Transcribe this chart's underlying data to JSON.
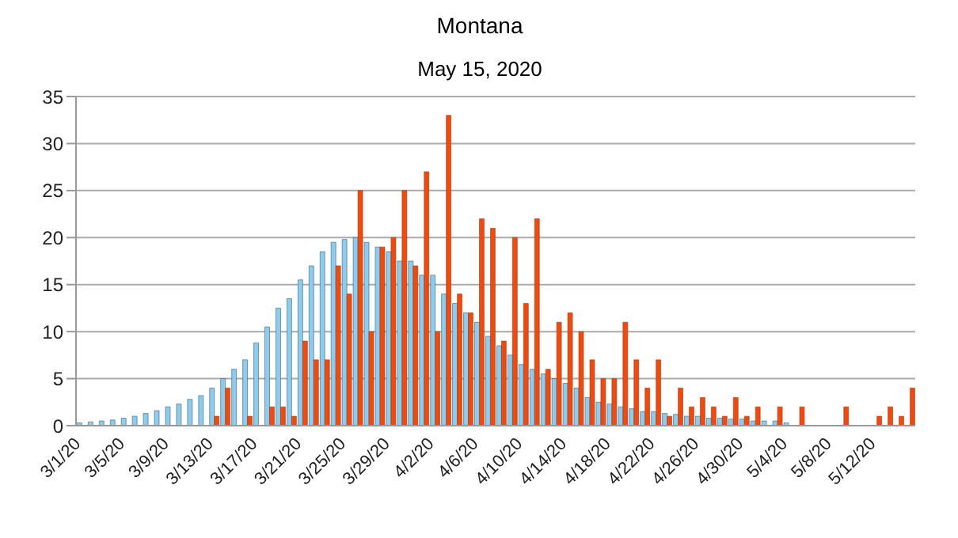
{
  "chart_data": {
    "type": "bar",
    "title": "Montana",
    "subtitle": "May 15, 2020",
    "categories": [
      "3/1/20",
      null,
      null,
      null,
      "3/5/20",
      null,
      null,
      null,
      "3/9/20",
      null,
      null,
      null,
      "3/13/20",
      null,
      null,
      null,
      "3/17/20",
      null,
      null,
      null,
      "3/21/20",
      null,
      null,
      null,
      "3/25/20",
      null,
      null,
      null,
      "3/29/20",
      null,
      null,
      null,
      "4/2/20",
      null,
      null,
      null,
      "4/6/20",
      null,
      null,
      null,
      "4/10/20",
      null,
      null,
      null,
      "4/14/20",
      null,
      null,
      null,
      "4/18/20",
      null,
      null,
      null,
      "4/22/20",
      null,
      null,
      null,
      "4/26/20",
      null,
      null,
      null,
      "4/30/20",
      null,
      null,
      null,
      "5/4/20",
      null,
      null,
      null,
      "5/8/20",
      null,
      null,
      null,
      "5/12/20",
      null,
      null,
      null
    ],
    "series": [
      {
        "color": "#87cef5",
        "values": [
          0.3,
          0.4,
          0.5,
          0.6,
          0.8,
          1,
          1.3,
          1.6,
          2,
          2.3,
          2.8,
          3.2,
          4,
          5,
          6,
          7,
          8.8,
          10.5,
          12.5,
          13.5,
          15.5,
          17,
          18.5,
          19.5,
          19.8,
          20,
          19.5,
          19,
          18.5,
          17.5,
          17.5,
          16,
          16,
          14,
          13,
          12,
          11,
          9.5,
          8.5,
          7.5,
          6.5,
          6,
          5.5,
          5,
          4.5,
          4,
          3,
          2.5,
          2.3,
          2,
          1.8,
          1.5,
          1.5,
          1.3,
          1.2,
          1,
          1,
          0.8,
          0.8,
          0.7,
          0.7,
          0.5,
          0.5,
          0.5,
          0.3,
          0,
          0,
          0,
          0,
          0,
          0,
          0,
          0,
          0,
          0,
          0
        ]
      },
      {
        "color": "#ff4500",
        "values": [
          0,
          0,
          0,
          0,
          0,
          0,
          0,
          0,
          0,
          0,
          0,
          0,
          1,
          4,
          0,
          1,
          0,
          2,
          2,
          1,
          9,
          7,
          7,
          17,
          14,
          25,
          10,
          19,
          20,
          25,
          17,
          27,
          10,
          33,
          14,
          12,
          22,
          21,
          9,
          20,
          13,
          22,
          6,
          11,
          12,
          10,
          7,
          5,
          5,
          11,
          7,
          4,
          7,
          1,
          4,
          2,
          3,
          2,
          1,
          3,
          1,
          2,
          0,
          2,
          0,
          2,
          0,
          0,
          0,
          2,
          0,
          0,
          1,
          2,
          1,
          4
        ]
      }
    ],
    "ylim": [
      0,
      35
    ],
    "yticks": [
      0,
      5,
      10,
      15,
      20,
      25,
      30,
      35
    ],
    "grid": "y"
  }
}
